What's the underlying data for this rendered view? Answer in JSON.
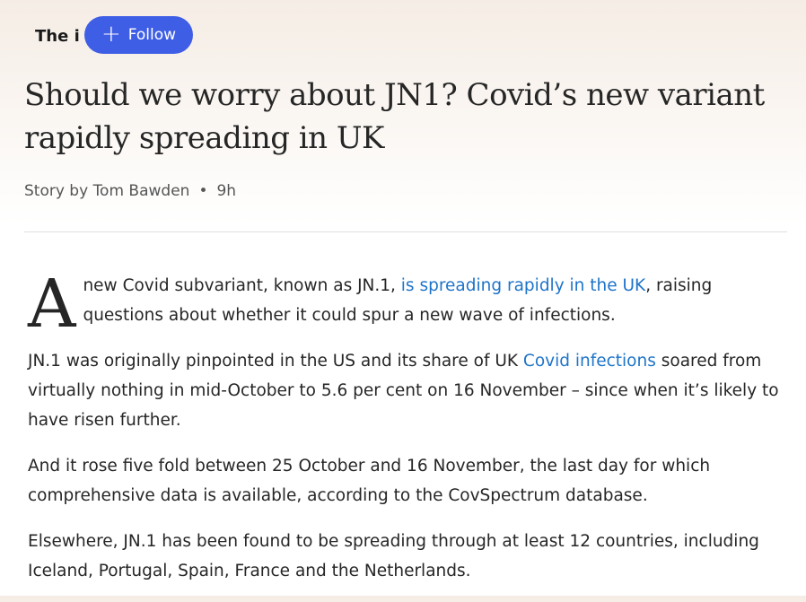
{
  "header": {
    "publisher": "The i",
    "follow_label": "Follow",
    "follow_icon": "plus-icon",
    "accent": "#3f5ee6"
  },
  "article": {
    "title": "Should we worry about JN1? Covid’s new variant rapidly spreading in UK",
    "byline": "Story by Tom Bawden",
    "age": "9h",
    "p1": {
      "dropcap": "A",
      "before": "new Covid subvariant, known as JN.1, ",
      "link": "is spreading rapidly in the UK",
      "after": ", raising questions about whether it could spur a new wave of infections."
    },
    "p2": {
      "before": "JN.1 was originally pinpointed in the US and its share of UK ",
      "link": "Covid infections",
      "after": " soared from virtually nothing in mid-October to 5.6 per cent on 16 November – since when it’s likely to have risen further."
    },
    "p3": "And it rose five fold between 25 October and 16 November, the last day for which comprehensive data is available, according to the CovSpectrum database.",
    "p4": "Elsewhere, JN.1 has been found to be spreading through at least 12 countries, including Iceland, Portugal, Spain, France and the Netherlands."
  }
}
